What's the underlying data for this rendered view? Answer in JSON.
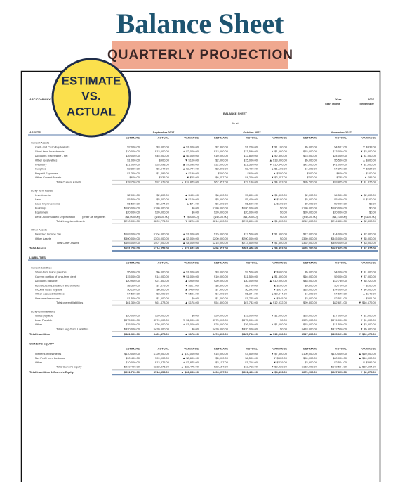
{
  "title": "Balance Sheet",
  "banner": "QUARTERLY PROJECTION",
  "badge": [
    "ESTIMATE",
    "VS.",
    "ACTUAL"
  ],
  "company": "ABC COMPANY",
  "year_label": "Year",
  "year": "2027",
  "start_month_label": "Start Month",
  "start_month": "September",
  "sheet_title": "BALANCE SHEET",
  "as_of": "As at",
  "months": [
    "September 2027",
    "October 2027",
    "November 2027"
  ],
  "columns": [
    "ESTIMATE",
    "ACTUAL",
    "VARIANCE"
  ],
  "sections": [
    {
      "title": "ASSETS",
      "groups": [
        {
          "title": "Current Assets",
          "rows": [
            {
              "label": "Cash and Cash Equivalents",
              "cells": [
                "$2,000.00",
                "$3,000.00",
                "▲ $1,000.00",
                "$2,300.00",
                "$1,200.00",
                "▼ $1,100.00",
                "$5,000.00",
                "$4,667.00",
                "▼ $333.00"
              ]
            },
            {
              "label": "Short-term Investments",
              "cells": [
                "$10,000.00",
                "$12,000.00",
                "▲ $2,000.00",
                "$12,000.00",
                "$13,590.00",
                "▲ $1,590.00",
                "$15,000.00",
                "$13,000.00",
                "▼ $2,000.00"
              ]
            },
            {
              "label": "Accounts Receivable - net",
              "cells": [
                "$39,000.00",
                "$45,000.00",
                "▲ $6,000.00",
                "$10,000.00",
                "$12,800.00",
                "▲ $2,800.00",
                "$23,000.00",
                "$24,000.00",
                "▲ $1,000.00"
              ]
            },
            {
              "label": "Other receivables",
              "cells": [
                "$1,000.00",
                "$900.00",
                "▼ $100.00",
                "$2,000.00",
                "$15,000.00",
                "▲ $13,000.00",
                "$5,000.00",
                "$5,500.00",
                "▲ $500.00"
              ]
            },
            {
              "label": "Inventory",
              "cells": [
                "$21,000.00",
                "$28,098.00",
                "▲ $7,098.00",
                "$32,000.00",
                "$21,360.00",
                "▼ $10,640.00",
                "$42,000.00",
                "$41,000.00",
                "▼ $1,000.00"
              ]
            },
            {
              "label": "Supplies",
              "cells": [
                "$3,800.00",
                "$6,547.00",
                "▲ $2,747.00",
                "$2,300.00",
                "$3,400.00",
                "▲ $1,100.00",
                "$4,500.00",
                "$4,273.00",
                "▼ $227.00"
              ]
            },
            {
              "label": "Prepaid Expenses",
              "cells": [
                "$1,300.00",
                "$1,499.00",
                "▲ $199.00",
                "$400.00",
                "$600.00",
                "▲ $200.00",
                "$500.00",
                "$600.00",
                "▲ $100.00"
              ]
            },
            {
              "label": "Other Current Assets",
              "cells": [
                "$600.00",
                "$535.00",
                "▼ $65.00",
                "$6,457.00",
                "$4,200.00",
                "▼ $2,257.00",
                "$700.00",
                "$785.00",
                "▲ $85.00"
              ]
            }
          ],
          "total": {
            "label": "Total Current Assets",
            "cells": [
              "$78,700.00",
              "$97,579.00",
              "▲ $18,879.00",
              "$67,457.00",
              "$72,150.00",
              "▲ $4,693.00",
              "$95,700.00",
              "$93,825.00",
              "▼ $1,875.00"
            ]
          }
        },
        {
          "title": "Long-Term Assets",
          "rows": [
            {
              "label": "Investments",
              "cells": [
                "$2,000.00",
                "$2,400.00",
                "▲ $400.00",
                "$6,500.00",
                "$7,800.00",
                "▲ $1,300.00",
                "$2,000.00",
                "$4,500.00",
                "▲ $2,500.00"
              ]
            },
            {
              "label": "Land",
              "cells": [
                "$5,500.00",
                "$5,400.00",
                "▼ $100.00",
                "$5,500.00",
                "$5,400.00",
                "▼ $100.00",
                "$5,500.00",
                "$5,400.00",
                "▼ $100.00"
              ]
            },
            {
              "label": "Land Improvements",
              "cells": [
                "$6,500.00",
                "$6,574.00",
                "▲ $74.00",
                "$6,500.00",
                "$6,600.00",
                "▲ $100.00",
                "$9,000.00",
                "$9,000.00",
                "$0.00"
              ]
            },
            {
              "label": "Buildings",
              "cells": [
                "$180,000.00",
                "$180,000.00",
                "$0.00",
                "$180,000.00",
                "$180,000.00",
                "$0.00",
                "$180,000.00",
                "$180,000.00",
                "$0.00"
              ]
            },
            {
              "label": "Equipment",
              "cells": [
                "$20,000.00",
                "$20,000.00",
                "$0.00",
                "$20,000.00",
                "$20,000.00",
                "$0.00",
                "$20,000.00",
                "$20,000.00",
                "$0.00"
              ]
            },
            {
              "label": "Less: Accumulated Depreciation",
              "note": "(enter as negative)",
              "cells": [
                "($4,000.00)",
                "($4,600.00)",
                "▼ ($600.00)",
                "($4,000.00)",
                "($4,000.00)",
                "$0.00",
                "($4,000.00)",
                "($4,100.00)",
                "▼ ($100.00)"
              ]
            }
          ],
          "total": {
            "label": "Total Long-term Assets",
            "cells": [
              "$210,000.00",
              "$209,774.00",
              "▼ $226.00",
              "$214,500.00",
              "$215,800.00",
              "▲ $1,300.00",
              "$212,500.00",
              "$214,800.00",
              "▲ $2,300.00"
            ]
          }
        },
        {
          "title": "Other Assets",
          "rows": [
            {
              "label": "Deferred Income Tax",
              "cells": [
                "$103,000.00",
                "$104,000.00",
                "▲ $1,000.00",
                "$15,000.00",
                "$13,500.00",
                "▼ $1,500.00",
                "$12,000.00",
                "$14,000.00",
                "▲ $2,000.00"
              ]
            },
            {
              "label": "Other Assets",
              "cells": [
                "$300,000.00",
                "$303,000.00",
                "▲ $3,000.00",
                "$200,000.00",
                "$200,000.00",
                "$0.00",
                "$350,000.00",
                "$345,000.00",
                "▼ $5,000.00"
              ]
            }
          ],
          "total": {
            "label": "Total Other Assets",
            "cells": [
              "$403,000.00",
              "$407,000.00",
              "▲ $4,000.00",
              "$215,000.00",
              "$213,500.00",
              "▼ $1,500.00",
              "$362,000.00",
              "$359,000.00",
              "▼ $3,000.00"
            ]
          }
        }
      ],
      "total": {
        "label": "Total Assets",
        "cells": [
          "$691,700.00",
          "$714,353.00",
          "▲ $22,653.00",
          "$496,957.00",
          "$501,450.00",
          "▲ $4,493.00",
          "$670,200.00",
          "$667,625.00",
          "▼ $2,575.00"
        ]
      }
    },
    {
      "title": "LIABILITIES",
      "groups": [
        {
          "title": "Current liabilities",
          "rows": [
            {
              "label": "Short-term loans payable",
              "cells": [
                "$5,000.00",
                "$6,000.00",
                "▲ $1,000.00",
                "$3,000.00",
                "$2,500.00",
                "▼ $500.00",
                "$5,000.00",
                "$4,000.00",
                "▼ $1,000.00"
              ]
            },
            {
              "label": "Current portion of long-term debt",
              "cells": [
                "$15,000.00",
                "$14,000.00",
                "▼ $1,000.00",
                "$10,000.00",
                "$11,500.00",
                "▲ $1,500.00",
                "$16,000.00",
                "$9,000.00",
                "▼ $7,000.00"
              ]
            },
            {
              "label": "Accounts payable",
              "cells": [
                "$20,900.00",
                "$21,800.00",
                "▲ $900.00",
                "$20,000.00",
                "$30,000.00",
                "▲ $10,000.00",
                "$48,000.00",
                "$42,780.00",
                "▼ $5,220.00"
              ]
            },
            {
              "label": "Accrued compensation and benefits",
              "cells": [
                "$8,300.00",
                "$7,679.00",
                "▼ $621.00",
                "$8,500.00",
                "$8,700.00",
                "▲ $200.00",
                "$5,800.00",
                "$5,700.00",
                "▼ $100.00"
              ]
            },
            {
              "label": "Income taxes payable",
              "cells": [
                "$6,100.00",
                "$6,500.00",
                "▲ $400.00",
                "$7,900.00",
                "$6,943.00",
                "▼ $957.00",
                "$18,000.00",
                "$14,000.00",
                "▼ $4,000.00"
              ]
            },
            {
              "label": "Other accrued liabilities",
              "cells": [
                "$4,500.00",
                "$3,999.00",
                "▼ $501.00",
                "$4,000.00",
                "$6,344.00",
                "▲ $2,344.00",
                "$4,500.00",
                "$4,640.00",
                "▲ $140.00"
              ]
            },
            {
              "label": "Unearned revenues",
              "cells": [
                "$1,500.00",
                "$1,500.00",
                "$0.00",
                "$1,400.00",
                "$1,745.00",
                "▲ $345.00",
                "$2,000.00",
                "$2,501.00",
                "▲ $501.00"
              ]
            }
          ],
          "total": {
            "label": "Total current liabilities",
            "cells": [
              "$61,300.00",
              "$61,478.00",
              "▲ $178.00",
              "$54,800.00",
              "$67,732.00",
              "▲ $12,932.00",
              "$99,300.00",
              "$82,621.00",
              "▼ $16,679.00"
            ]
          }
        },
        {
          "title": "Long-term liabilities",
          "rows": [
            {
              "label": "Notes payable",
              "cells": [
                "$20,000.00",
                "$20,000.00",
                "$0.00",
                "$20,000.00",
                "$19,000.00",
                "▼ $1,000.00",
                "$28,000.00",
                "$27,000.00",
                "▼ $1,000.00"
              ]
            },
            {
              "label": "Loan Payable",
              "cells": [
                "$375,000.00",
                "$374,000.00",
                "▼ $1,000.00",
                "$375,000.00",
                "$375,000.00",
                "$0.00",
                "$375,000.00",
                "$374,000.00",
                "▼ $1,000.00"
              ]
            },
            {
              "label": "Other",
              "cells": [
                "$25,000.00",
                "$26,000.00",
                "▲ $1,000.00",
                "$25,000.00",
                "$26,000.00",
                "▲ $1,000.00",
                "$15,000.00",
                "$11,500.00",
                "▼ $3,500.00"
              ]
            }
          ],
          "total": {
            "label": "Total Long-Term Liabilities",
            "cells": [
              "$420,000.00",
              "$420,000.00",
              "$0.00",
              "$420,000.00",
              "$420,000.00",
              "$0.00",
              "$418,000.00",
              "$412,500.00",
              "▼ $5,500.00"
            ]
          }
        }
      ],
      "total": {
        "label": "Total Liabilities",
        "cells": [
          "$481,300.00",
          "$481,478.00",
          "▲ $178.00",
          "$474,800.00",
          "$487,732.00",
          "▲ $12,932.00",
          "$517,300.00",
          "$495,121.00",
          "▼ $22,179.00"
        ]
      }
    },
    {
      "title": "OWNER'S EQUITY",
      "groups": [
        {
          "title": "",
          "rows": [
            {
              "label": "Owner's Investments",
              "cells": [
                "$110,000.00",
                "$120,000.00",
                "▲ $10,000.00",
                "$15,000.00",
                "$7,500.00",
                "▼ $7,500.00",
                "$100,000.00",
                "$110,000.00",
                "▲ $10,000.00"
              ]
            },
            {
              "label": "Net Profit from business",
              "cells": [
                "$90,400.00",
                "$99,000.00",
                "▲ $8,600.00",
                "$5,000.00",
                "$4,500.00",
                "▼ $500.00",
                "$50,000.00",
                "$60,000.00",
                "▲ $10,000.00"
              ]
            },
            {
              "label": "Other",
              "cells": [
                "$10,000.00",
                "$13,875.00",
                "▲ $3,875.00",
                "$2,157.00",
                "$1,718.00",
                "▼ $439.00",
                "$2,900.00",
                "$2,504.00",
                "▼ $396.00"
              ]
            }
          ],
          "total": {
            "label": "Total Owner's Equity",
            "cells": [
              "$210,400.00",
              "$232,875.00",
              "▲ $22,475.00",
              "$22,157.00",
              "$13,718.00",
              "▼ $8,439.00",
              "$152,900.00",
              "$172,504.00",
              "▲ $19,604.00"
            ]
          }
        }
      ],
      "total": {
        "label": "Total Liabilities & Owner's Equity",
        "cells": [
          "$691,700.00",
          "$714,353.00",
          "▲ $22,653.00",
          "$496,957.00",
          "$501,450.00",
          "▲ $4,493.00",
          "$670,200.00",
          "$667,625.00",
          "▼ $2,575.00"
        ]
      }
    }
  ]
}
